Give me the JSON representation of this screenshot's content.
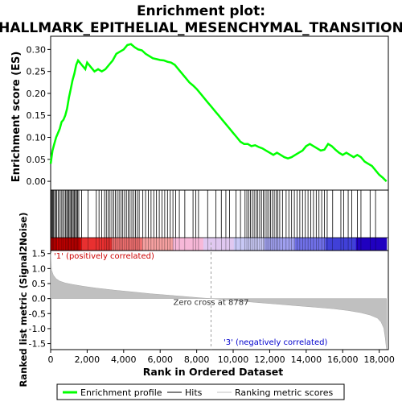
{
  "chart_data": {
    "type": "line",
    "title": "Enrichment plot:\nHALLMARK_EPITHELIAL_MESENCHYMAL_TRANSITION",
    "title_lines": [
      "Enrichment plot:",
      "HALLMARK_EPITHELIAL_MESENCHYMAL_TRANSITION"
    ],
    "xlabel": "Rank in Ordered Dataset",
    "xlim": [
      0,
      18500
    ],
    "x_ticks": [
      "0",
      "2,000",
      "4,000",
      "6,000",
      "8,000",
      "10,000",
      "12,000",
      "14,000",
      "16,000",
      "18,000"
    ],
    "x_tick_values": [
      0,
      2000,
      4000,
      6000,
      8000,
      10000,
      12000,
      14000,
      16000,
      18000
    ],
    "es_panel": {
      "ylabel": "Enrichment score (ES)",
      "ylim": [
        -0.02,
        0.33
      ],
      "y_ticks": [
        "0.00",
        "0.05",
        "0.10",
        "0.15",
        "0.20",
        "0.25",
        "0.30"
      ],
      "y_tick_values": [
        0.0,
        0.05,
        0.1,
        0.15,
        0.2,
        0.25,
        0.3
      ],
      "grid": false,
      "series": [
        {
          "name": "Enrichment profile",
          "color": "#00ff00",
          "x": [
            0,
            100,
            200,
            300,
            400,
            500,
            600,
            700,
            800,
            900,
            1000,
            1100,
            1200,
            1300,
            1400,
            1500,
            1600,
            1700,
            1800,
            1900,
            2000,
            2200,
            2400,
            2600,
            2800,
            3000,
            3200,
            3400,
            3600,
            3800,
            4000,
            4200,
            4400,
            4600,
            4800,
            5000,
            5200,
            5400,
            5600,
            5800,
            6000,
            6200,
            6400,
            6600,
            6800,
            7000,
            7200,
            7400,
            7600,
            7800,
            8000,
            8200,
            8400,
            8600,
            8800,
            9000,
            9200,
            9400,
            9600,
            9800,
            10000,
            10200,
            10400,
            10600,
            10800,
            11000,
            11200,
            11400,
            11600,
            11800,
            12000,
            12200,
            12400,
            12600,
            12800,
            13000,
            13200,
            13400,
            13600,
            13800,
            14000,
            14200,
            14400,
            14600,
            14800,
            15000,
            15200,
            15400,
            15600,
            15800,
            16000,
            16200,
            16400,
            16600,
            16800,
            17000,
            17200,
            17400,
            17600,
            17800,
            18000,
            18200,
            18400
          ],
          "values": [
            0.04,
            0.07,
            0.085,
            0.1,
            0.11,
            0.12,
            0.135,
            0.14,
            0.15,
            0.165,
            0.19,
            0.21,
            0.23,
            0.245,
            0.265,
            0.275,
            0.27,
            0.265,
            0.26,
            0.255,
            0.27,
            0.26,
            0.25,
            0.255,
            0.25,
            0.255,
            0.265,
            0.275,
            0.29,
            0.295,
            0.3,
            0.31,
            0.312,
            0.305,
            0.3,
            0.298,
            0.29,
            0.285,
            0.28,
            0.278,
            0.276,
            0.275,
            0.272,
            0.27,
            0.265,
            0.255,
            0.245,
            0.235,
            0.225,
            0.218,
            0.21,
            0.2,
            0.19,
            0.18,
            0.17,
            0.16,
            0.15,
            0.14,
            0.13,
            0.12,
            0.11,
            0.1,
            0.09,
            0.085,
            0.085,
            0.08,
            0.082,
            0.078,
            0.075,
            0.07,
            0.065,
            0.06,
            0.065,
            0.06,
            0.055,
            0.052,
            0.055,
            0.06,
            0.065,
            0.07,
            0.08,
            0.085,
            0.08,
            0.075,
            0.07,
            0.072,
            0.085,
            0.08,
            0.072,
            0.065,
            0.06,
            0.065,
            0.06,
            0.055,
            0.06,
            0.055,
            0.045,
            0.04,
            0.035,
            0.025,
            0.015,
            0.008,
            0.0
          ]
        }
      ]
    },
    "hits_panel": {
      "series_name": "Hits",
      "color": "#000000",
      "hit_positions": [
        20,
        60,
        110,
        160,
        220,
        280,
        340,
        420,
        500,
        580,
        660,
        740,
        820,
        880,
        940,
        1000,
        1060,
        1120,
        1180,
        1240,
        1300,
        1360,
        1420,
        1480,
        1540,
        1700,
        2050,
        2500,
        2650,
        2800,
        2950,
        3050,
        3150,
        3250,
        3350,
        3450,
        3550,
        3650,
        3750,
        3850,
        3950,
        4050,
        4150,
        4250,
        4350,
        4450,
        4550,
        4650,
        4750,
        4850,
        5050,
        5200,
        5350,
        5500,
        5650,
        5800,
        5950,
        6100,
        6250,
        6400,
        6550,
        6700,
        6850,
        7050,
        7350,
        7800,
        7950,
        8100,
        8600,
        9050,
        9350,
        9600,
        9800,
        10150,
        10400,
        10650,
        10750,
        10850,
        10950,
        11050,
        11150,
        11250,
        11350,
        11450,
        11550,
        11650,
        11750,
        11850,
        11950,
        12050,
        12150,
        12250,
        12350,
        12450,
        12550,
        12700,
        12900,
        13050,
        13200,
        13350,
        13500,
        13650,
        13800,
        13950,
        14100,
        14250,
        14400,
        14550,
        14700,
        14850,
        15000,
        15150,
        15450,
        15900,
        16050,
        16300,
        16500,
        16800,
        17000,
        17500,
        17800
      ]
    },
    "color_bar": {
      "colors": [
        "#cc0000",
        "#e83030",
        "#f07070",
        "#f5a0a0",
        "#f7b8d8",
        "#e0c8f0",
        "#c8c8f5",
        "#a0a0f0",
        "#7070e8",
        "#4040d8",
        "#2000c0"
      ],
      "zero_cross": 8787
    },
    "metric_panel": {
      "ylabel": "Ranked list metric (Signal2Noise)",
      "series_name": "Ranking metric scores",
      "ylim": [
        -1.7,
        1.6
      ],
      "y_ticks": [
        "-1.5",
        "-1.0",
        "-0.5",
        "0.0",
        "0.5",
        "1.0",
        "1.5"
      ],
      "y_tick_values": [
        -1.5,
        -1.0,
        -0.5,
        0.0,
        0.5,
        1.0,
        1.5
      ],
      "fill_color": "#c0c0c0",
      "x": [
        0,
        50,
        150,
        300,
        500,
        800,
        1200,
        1800,
        2500,
        3500,
        4500,
        5500,
        6500,
        7500,
        8300,
        8787,
        9500,
        10500,
        11500,
        12500,
        13500,
        14500,
        15500,
        16300,
        17000,
        17500,
        17900,
        18100,
        18250,
        18330,
        18400
      ],
      "values": [
        1.52,
        0.95,
        0.78,
        0.66,
        0.58,
        0.52,
        0.47,
        0.41,
        0.35,
        0.28,
        0.22,
        0.16,
        0.11,
        0.06,
        0.02,
        0.0,
        -0.04,
        -0.09,
        -0.14,
        -0.19,
        -0.24,
        -0.29,
        -0.34,
        -0.4,
        -0.47,
        -0.55,
        -0.65,
        -0.78,
        -0.98,
        -1.3,
        -1.68
      ],
      "zero_cross_label": "Zero cross at 8787",
      "pos_label": "'1' (positively correlated)",
      "neg_label": "'3' (negatively correlated)",
      "pos_label_color": "#cc0000",
      "neg_label_color": "#0000cc"
    },
    "legend": {
      "placement": "bottom",
      "items": [
        {
          "label": "Enrichment profile",
          "color": "#00ff00",
          "kind": "thick-line"
        },
        {
          "label": "Hits",
          "color": "#000000",
          "kind": "line"
        },
        {
          "label": "Ranking metric scores",
          "color": "#c0c0c0",
          "kind": "line"
        }
      ]
    }
  }
}
